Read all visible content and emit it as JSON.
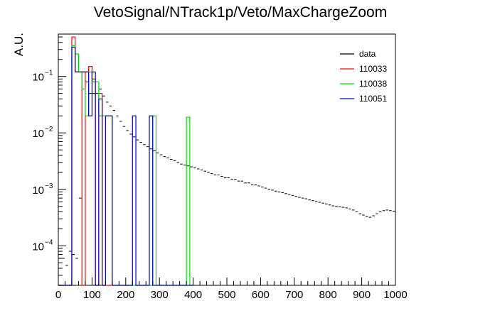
{
  "chart_data": {
    "type": "histogram",
    "title": "VetoSignal/NTrack1p/Veto/MaxChargeZoom",
    "xlabel": "",
    "ylabel": "A.U.",
    "xlim": [
      0,
      1000
    ],
    "ylim_log10": [
      -4.7,
      -0.25
    ],
    "yscale": "log",
    "grid": false,
    "legend_position": "top-right",
    "x_tick_labels": [
      "0",
      "100",
      "200",
      "300",
      "400",
      "500",
      "600",
      "700",
      "800",
      "900",
      "1000"
    ],
    "y_tick_labels": [
      {
        "exp": -4,
        "base": "10",
        "sup": "−4"
      },
      {
        "exp": -3,
        "base": "10",
        "sup": "−3"
      },
      {
        "exp": -2,
        "base": "10",
        "sup": "−2"
      },
      {
        "exp": -1,
        "base": "10",
        "sup": "−1"
      }
    ],
    "data": {
      "name": "data",
      "color": "#000000",
      "bin_width": 10,
      "x": [
        5,
        15,
        25,
        35,
        45,
        55,
        65,
        75,
        85,
        95,
        105,
        115,
        125,
        135,
        145,
        155,
        165,
        175,
        185,
        195,
        205,
        215,
        225,
        235,
        245,
        255,
        265,
        275,
        285,
        295,
        305,
        315,
        325,
        335,
        345,
        355,
        365,
        375,
        385,
        395,
        405,
        415,
        425,
        435,
        445,
        455,
        465,
        475,
        485,
        495,
        505,
        515,
        525,
        535,
        545,
        555,
        565,
        575,
        585,
        595,
        605,
        615,
        625,
        635,
        645,
        655,
        665,
        675,
        685,
        695,
        705,
        715,
        725,
        735,
        745,
        755,
        765,
        775,
        785,
        795,
        805,
        815,
        825,
        835,
        845,
        855,
        865,
        875,
        885,
        895,
        905,
        915,
        925,
        935,
        945,
        955,
        965,
        975,
        985,
        995
      ],
      "y": [
        6e-05,
        6e-05,
        4.5e-05,
        8e-05,
        7e-05,
        6e-05,
        0.0007,
        0.12,
        0.08,
        0.05,
        0.05,
        0.05,
        0.06,
        0.045,
        0.035,
        0.03,
        0.025,
        0.02,
        0.016,
        0.013,
        0.011,
        0.0095,
        0.0085,
        0.0075,
        0.0068,
        0.0062,
        0.0057,
        0.0052,
        0.0048,
        0.0044,
        0.0041,
        0.0038,
        0.0036,
        0.0034,
        0.0032,
        0.003,
        0.0028,
        0.0027,
        0.0026,
        0.0025,
        0.0024,
        0.0023,
        0.0022,
        0.0021,
        0.002,
        0.0019,
        0.0018,
        0.0018,
        0.0017,
        0.0016,
        0.0016,
        0.0015,
        0.0015,
        0.0014,
        0.0014,
        0.0013,
        0.0013,
        0.0012,
        0.0012,
        0.00115,
        0.0011,
        0.00105,
        0.001,
        0.00097,
        0.00093,
        0.0009,
        0.00087,
        0.00084,
        0.00081,
        0.00078,
        0.00075,
        0.00072,
        0.0007,
        0.00068,
        0.00065,
        0.00063,
        0.00061,
        0.00059,
        0.00057,
        0.00055,
        0.00053,
        0.00051,
        0.0005,
        0.00049,
        0.00048,
        0.00047,
        0.00045,
        0.00043,
        0.0004,
        0.00037,
        0.00035,
        0.00033,
        0.00032,
        0.00034,
        0.00037,
        0.0004,
        0.00042,
        0.00043,
        0.00042,
        0.00041
      ]
    },
    "series": [
      {
        "name": "110033",
        "color": "#ff0000",
        "x_edges": [
          0,
          40,
          50,
          70,
          80,
          90,
          100,
          110,
          120,
          130,
          140,
          150,
          160
        ],
        "values": [
          0,
          0.5,
          0.12,
          0,
          0.12,
          0.15,
          0.09,
          0,
          0.05,
          0,
          0,
          0
        ]
      },
      {
        "name": "110038",
        "color": "#00dd00",
        "x_edges": [
          0,
          40,
          50,
          60,
          70,
          80,
          90,
          100,
          110,
          120,
          130,
          150,
          160,
          280,
          290,
          380,
          390,
          400
        ],
        "values": [
          0,
          0.35,
          0.25,
          0.12,
          0.06,
          0.02,
          0.12,
          0.08,
          0.08,
          0.02,
          0.02,
          0.02,
          0,
          0.02,
          0,
          0.019,
          0
        ]
      },
      {
        "name": "110051",
        "color": "#0000cc",
        "x_edges": [
          0,
          40,
          50,
          60,
          90,
          100,
          110,
          120,
          130,
          140,
          150,
          160,
          220,
          230,
          270,
          280,
          400
        ],
        "values": [
          0,
          0.33,
          0.12,
          0.12,
          0.02,
          0.12,
          0,
          0.04,
          0,
          0.02,
          0.02,
          0,
          0.02,
          0,
          0.02,
          0
        ]
      }
    ],
    "legend": [
      {
        "label": "data",
        "color": "#000000"
      },
      {
        "label": "110033",
        "color": "#ff0000"
      },
      {
        "label": "110038",
        "color": "#00dd00"
      },
      {
        "label": "110051",
        "color": "#0000cc"
      }
    ]
  }
}
